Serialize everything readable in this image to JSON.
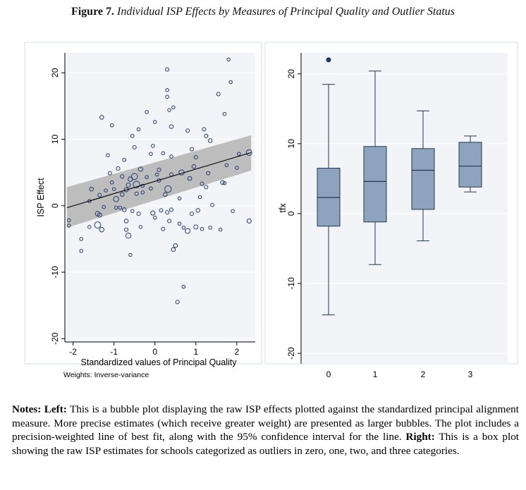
{
  "title": {
    "label": "Figure 7.",
    "text": "Individual ISP Effects by Measures of Principal Quality and Outlier Status"
  },
  "chart_data": [
    {
      "type": "scatter",
      "title": "",
      "xlabel": "Standardized values of Principal Quality",
      "ylabel": "ISP Effect",
      "note": "Weights: Inverse-variance",
      "xlim": [
        -2.2,
        2.45
      ],
      "ylim": [
        -20.5,
        23
      ],
      "xticks": [
        -2,
        -1,
        0,
        1,
        2
      ],
      "yticks": [
        -20,
        -10,
        0,
        10,
        20
      ],
      "fit_line": {
        "x": [
          -2.15,
          2.35
        ],
        "y": [
          -0.3,
          8.0
        ]
      },
      "ci_band": {
        "x": [
          -2.15,
          2.35
        ],
        "upper": [
          2.8,
          10.6
        ],
        "lower": [
          -3.3,
          5.3
        ]
      },
      "colors": {
        "marker": "#1f3b6e",
        "band": "#bdbdbd",
        "line": "#000000",
        "plot_bg": "#f2f4f7",
        "grid": "#ffffff"
      },
      "points": [
        [
          -2.1,
          -3.0,
          0.7
        ],
        [
          -2.1,
          -2.2,
          0.7
        ],
        [
          -1.8,
          -5.0,
          0.7
        ],
        [
          -1.8,
          -6.8,
          0.7
        ],
        [
          -1.6,
          -3.2,
          0.7
        ],
        [
          -1.6,
          0.7,
          0.7
        ],
        [
          -1.55,
          2.5,
          0.9
        ],
        [
          -1.4,
          -1.2,
          1.1
        ],
        [
          -1.4,
          -2.9,
          1.6
        ],
        [
          -1.35,
          -1.4,
          1.0
        ],
        [
          -1.35,
          1.6,
          0.8
        ],
        [
          -1.3,
          -3.6,
          1.1
        ],
        [
          -1.3,
          13.3,
          0.9
        ],
        [
          -1.25,
          -0.2,
          0.7
        ],
        [
          -1.2,
          2.3,
          0.7
        ],
        [
          -1.15,
          7.6,
          0.7
        ],
        [
          -1.1,
          4.9,
          0.8
        ],
        [
          -1.05,
          3.5,
          0.7
        ],
        [
          -1.05,
          12.1,
          0.7
        ],
        [
          -1.0,
          2.5,
          0.7
        ],
        [
          -0.95,
          1.0,
          1.3
        ],
        [
          -0.95,
          -0.3,
          0.7
        ],
        [
          -0.9,
          5.6,
          0.8
        ],
        [
          -0.85,
          -0.3,
          0.7
        ],
        [
          -0.8,
          1.7,
          0.9
        ],
        [
          -0.8,
          4.4,
          0.8
        ],
        [
          -0.75,
          -0.6,
          0.9
        ],
        [
          -0.75,
          6.9,
          0.7
        ],
        [
          -0.7,
          2.4,
          1.0
        ],
        [
          -0.7,
          -2.3,
          0.9
        ],
        [
          -0.7,
          -3.6,
          0.8
        ],
        [
          -0.65,
          -4.5,
          1.3
        ],
        [
          -0.65,
          3.1,
          1.0
        ],
        [
          -0.6,
          4.0,
          1.1
        ],
        [
          -0.6,
          -7.4,
          0.7
        ],
        [
          -0.55,
          -0.8,
          0.7
        ],
        [
          -0.55,
          10.5,
          0.7
        ],
        [
          -0.5,
          4.4,
          1.6
        ],
        [
          -0.5,
          8.8,
          0.8
        ],
        [
          -0.45,
          3.2,
          1.7
        ],
        [
          -0.45,
          1.8,
          0.8
        ],
        [
          -0.4,
          -1.2,
          0.8
        ],
        [
          -0.4,
          11.5,
          0.7
        ],
        [
          -0.35,
          -3.2,
          0.7
        ],
        [
          -0.35,
          5.5,
          1.0
        ],
        [
          -0.3,
          2.0,
          0.7
        ],
        [
          -0.3,
          3.0,
          0.7
        ],
        [
          -0.2,
          14.1,
          0.7
        ],
        [
          -0.2,
          4.3,
          0.7
        ],
        [
          -0.1,
          2.6,
          0.7
        ],
        [
          -0.1,
          7.8,
          0.7
        ],
        [
          -0.05,
          -1.1,
          1.0
        ],
        [
          -0.05,
          9.0,
          0.7
        ],
        [
          0.0,
          -1.8,
          0.7
        ],
        [
          0.0,
          12.6,
          0.7
        ],
        [
          0.05,
          4.7,
          0.7
        ],
        [
          0.1,
          3.8,
          0.8
        ],
        [
          0.1,
          5.4,
          0.8
        ],
        [
          0.15,
          -0.7,
          0.8
        ],
        [
          0.2,
          -3.5,
          0.8
        ],
        [
          0.2,
          7.9,
          0.7
        ],
        [
          0.25,
          1.7,
          0.9
        ],
        [
          0.3,
          -1.0,
          0.8
        ],
        [
          0.3,
          16.4,
          0.7
        ],
        [
          0.3,
          17.4,
          0.7
        ],
        [
          0.3,
          20.5,
          0.8
        ],
        [
          0.32,
          2.5,
          1.7
        ],
        [
          0.35,
          -2.3,
          0.8
        ],
        [
          0.35,
          14.4,
          0.7
        ],
        [
          0.4,
          -0.6,
          0.8
        ],
        [
          0.4,
          7.4,
          0.7
        ],
        [
          0.4,
          4.7,
          0.8
        ],
        [
          0.4,
          11.9,
          0.9
        ],
        [
          0.45,
          -6.6,
          0.9
        ],
        [
          0.45,
          14.8,
          0.7
        ],
        [
          0.5,
          -6.0,
          0.9
        ],
        [
          0.55,
          -14.5,
          0.8
        ],
        [
          0.6,
          -2.7,
          0.7
        ],
        [
          0.6,
          1.1,
          0.7
        ],
        [
          0.65,
          5.0,
          1.3
        ],
        [
          0.7,
          -12.2,
          0.7
        ],
        [
          0.7,
          -3.3,
          0.7
        ],
        [
          0.8,
          -3.8,
          1.2
        ],
        [
          0.8,
          11.3,
          0.8
        ],
        [
          0.85,
          4.1,
          0.9
        ],
        [
          0.9,
          -1.2,
          0.8
        ],
        [
          0.9,
          8.5,
          0.8
        ],
        [
          0.95,
          5.9,
          0.9
        ],
        [
          1.0,
          -3.2,
          1.0
        ],
        [
          1.0,
          7.3,
          0.8
        ],
        [
          1.05,
          -0.7,
          0.9
        ],
        [
          1.1,
          1.3,
          0.7
        ],
        [
          1.15,
          -3.5,
          0.7
        ],
        [
          1.15,
          3.3,
          0.8
        ],
        [
          1.2,
          11.5,
          0.8
        ],
        [
          1.25,
          10.5,
          0.8
        ],
        [
          1.25,
          2.8,
          0.8
        ],
        [
          1.3,
          4.9,
          0.8
        ],
        [
          1.35,
          -3.3,
          0.7
        ],
        [
          1.35,
          9.8,
          0.9
        ],
        [
          1.4,
          0.1,
          0.7
        ],
        [
          1.55,
          16.8,
          0.8
        ],
        [
          1.6,
          -3.6,
          0.7
        ],
        [
          1.65,
          3.5,
          0.9
        ],
        [
          1.7,
          3.4,
          0.7
        ],
        [
          1.7,
          13.8,
          0.7
        ],
        [
          1.75,
          6.1,
          0.7
        ],
        [
          1.8,
          22.0,
          0.7
        ],
        [
          1.85,
          18.6,
          0.7
        ],
        [
          1.9,
          -0.8,
          0.7
        ],
        [
          2.0,
          5.7,
          0.7
        ],
        [
          2.05,
          7.8,
          0.7
        ],
        [
          2.3,
          8.0,
          1.4
        ],
        [
          2.3,
          -2.3,
          1.0
        ]
      ]
    },
    {
      "type": "box",
      "title": "",
      "xlabel": "",
      "ylabel": "tfx",
      "ylim": [
        -21.5,
        23
      ],
      "yticks": [
        -20,
        -10,
        0,
        10,
        20
      ],
      "categories": [
        "0",
        "1",
        "2",
        "3"
      ],
      "colors": {
        "box": "#8ea3bd",
        "edge": "#22384f",
        "outlier": "#1a3a66",
        "plot_bg": "#f2f4f7"
      },
      "boxes": [
        {
          "category": "0",
          "whisker_low": -14.5,
          "q1": -1.8,
          "median": 2.3,
          "q3": 6.5,
          "whisker_high": 18.5,
          "outliers": [
            22.0
          ]
        },
        {
          "category": "1",
          "whisker_low": -7.3,
          "q1": -1.2,
          "median": 4.6,
          "q3": 9.6,
          "whisker_high": 20.4,
          "outliers": []
        },
        {
          "category": "2",
          "whisker_low": -3.9,
          "q1": 0.6,
          "median": 6.2,
          "q3": 9.3,
          "whisker_high": 14.7,
          "outliers": []
        },
        {
          "category": "3",
          "whisker_low": 3.1,
          "q1": 3.8,
          "median": 6.8,
          "q3": 10.2,
          "whisker_high": 11.1,
          "outliers": []
        }
      ]
    }
  ],
  "notes": {
    "left_label": "Notes: Left:",
    "left_text": "This is a bubble plot displaying the raw ISP effects plotted against the standardized principal alignment measure. More precise estimates (which receive greater weight) are presented as larger bubbles. The plot includes a precision-weighted line of best fit, along with the 95% confidence interval for the line.",
    "right_label": "Right:",
    "right_text": "This is a box plot showing the raw ISP estimates for schools categorized as outliers in zero, one, two, and three categories."
  }
}
